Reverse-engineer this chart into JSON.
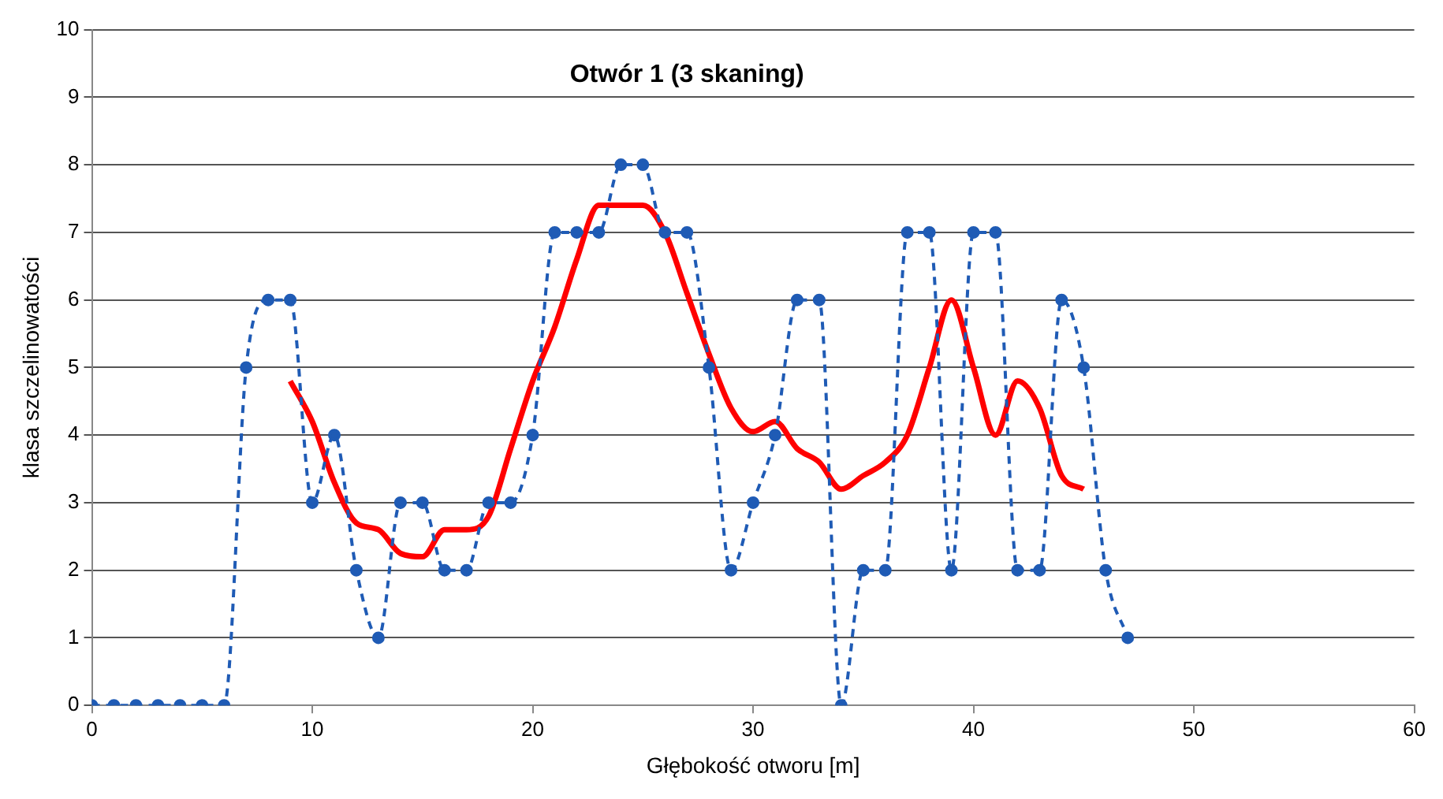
{
  "chart_data": {
    "type": "line",
    "title": "Otwór 1 (3 skaning)",
    "xlabel": "Głębokość otworu [m]",
    "ylabel": "klasa szczelinowatości",
    "xlim": [
      0,
      60
    ],
    "xticks": [
      0,
      10,
      20,
      30,
      40,
      50,
      60
    ],
    "ylim": [
      0,
      10
    ],
    "yticks": [
      0,
      1,
      2,
      3,
      4,
      5,
      6,
      7,
      8,
      9,
      10
    ],
    "grid": "y",
    "legend": false,
    "series": [
      {
        "color": "#1f5bb5",
        "marker": "circle",
        "line_style": "dashed",
        "x": [
          0,
          1,
          2,
          3,
          4,
          5,
          6,
          7,
          8,
          9,
          10,
          11,
          12,
          13,
          14,
          15,
          16,
          17,
          18,
          19,
          20,
          21,
          22,
          23,
          24,
          25,
          26,
          27,
          28,
          29,
          30,
          31,
          32,
          33,
          34,
          35,
          36,
          37,
          38,
          39,
          40,
          41,
          42,
          43,
          44,
          45,
          46,
          47
        ],
        "values": [
          0,
          0,
          0,
          0,
          0,
          0,
          0,
          5,
          6,
          6,
          3,
          4,
          2,
          1,
          3,
          3,
          2,
          2,
          3,
          3,
          4,
          7,
          7,
          7,
          8,
          8,
          7,
          7,
          5,
          2,
          3,
          4,
          6,
          6,
          0,
          2,
          2,
          7,
          7,
          2,
          7,
          7,
          2,
          2,
          6,
          5,
          2,
          1
        ]
      },
      {
        "color": "#ff0000",
        "marker": "none",
        "line_style": "solid",
        "x": [
          9,
          10,
          11,
          12,
          13,
          14,
          15,
          16,
          17,
          18,
          19,
          20,
          21,
          22,
          23,
          24,
          25,
          26,
          27,
          28,
          29,
          30,
          31,
          32,
          33,
          34,
          35,
          36,
          37,
          38,
          39,
          40,
          41,
          42,
          43,
          44,
          45
        ],
        "values": [
          4.8,
          4.2,
          3.3,
          2.7,
          2.6,
          2.25,
          2.2,
          2.6,
          2.6,
          2.8,
          3.8,
          4.8,
          5.6,
          6.6,
          7.4,
          7.4,
          7.4,
          7.0,
          6.1,
          5.2,
          4.4,
          4.05,
          4.2,
          3.8,
          3.6,
          3.2,
          3.4,
          3.6,
          4.0,
          5.0,
          6.0,
          5.0,
          4.0,
          4.8,
          4.4,
          3.4,
          3.2
        ]
      }
    ]
  }
}
